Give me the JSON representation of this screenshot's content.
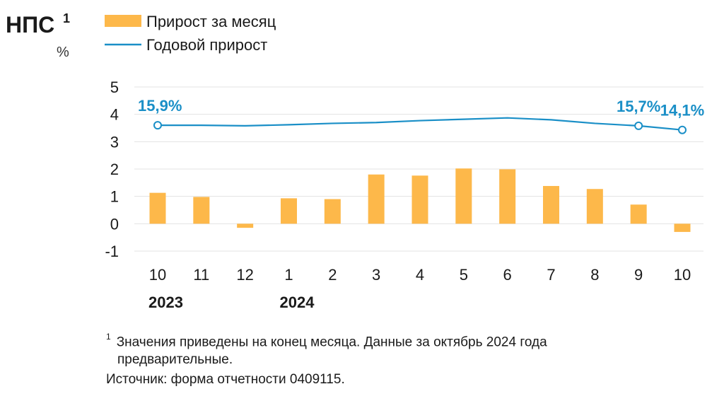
{
  "title": "НПС",
  "title_sup": "1",
  "unit": "%",
  "legend": {
    "bar_label": "Прирост за месяц",
    "line_label": "Годовой прирост"
  },
  "colors": {
    "bar": "#FDB84A",
    "line": "#1A8FC7",
    "grid": "#E3E3E3",
    "text": "#1a1a1a"
  },
  "chart_data": {
    "type": "bar",
    "categories": [
      "10",
      "11",
      "12",
      "1",
      "2",
      "3",
      "4",
      "5",
      "6",
      "7",
      "8",
      "9",
      "10"
    ],
    "year_labels": [
      {
        "text": "2023",
        "at_index": 0
      },
      {
        "text": "2024",
        "at_index": 3
      }
    ],
    "series": [
      {
        "name": "Прирост за месяц",
        "type": "bar",
        "values": [
          1.13,
          0.98,
          -0.15,
          0.93,
          0.9,
          1.8,
          1.76,
          2.02,
          1.99,
          1.38,
          1.27,
          0.7,
          -0.3
        ]
      },
      {
        "name": "Годовой прирост",
        "type": "line",
        "axis": "plotted on left scale (no own axis)",
        "values": [
          3.6,
          3.6,
          3.58,
          3.62,
          3.67,
          3.7,
          3.77,
          3.82,
          3.87,
          3.8,
          3.67,
          3.58,
          3.43
        ]
      }
    ],
    "line_annotations": [
      {
        "index": 0,
        "text": "15,9%"
      },
      {
        "index": 11,
        "text": "15,7%"
      },
      {
        "index": 12,
        "text": "14,1%"
      }
    ],
    "yticks": [
      "5",
      "4",
      "3",
      "2",
      "1",
      "0",
      "-1"
    ],
    "ylim": [
      -1,
      5
    ],
    "grid": true,
    "legend_position": "top"
  },
  "footnote": {
    "marker": "1",
    "line1": "Значения приведены на конец месяца. Данные за октябрь 2024 года",
    "line2": "предварительные."
  },
  "source": "Источник: форма отчетности 0409115."
}
